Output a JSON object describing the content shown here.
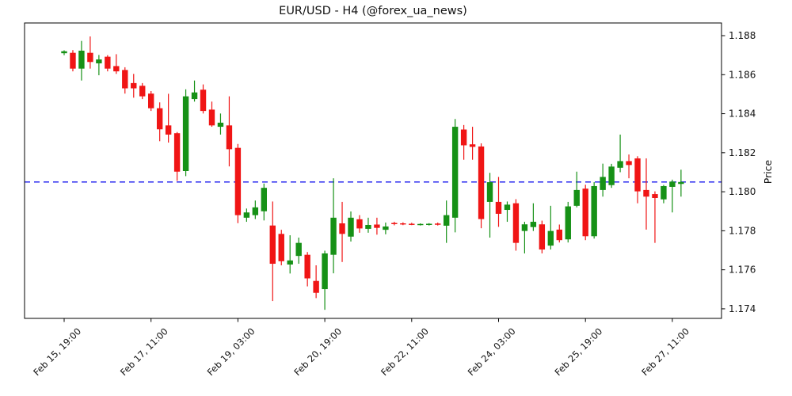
{
  "chart_data": {
    "type": "candlestick",
    "title": "EUR/USD - H4 (@forex_ua_news)",
    "ylabel": "Price",
    "ylabel_side": "right",
    "grid": false,
    "legend": null,
    "ylim": [
      1.17351,
      1.18865
    ],
    "xlim_index": [
      -4.56,
      75.66
    ],
    "y_ticks": [
      1.174,
      1.176,
      1.178,
      1.18,
      1.182,
      1.184,
      1.186,
      1.188
    ],
    "y_tick_format": "3dp",
    "x_ticks": [
      {
        "index": 0,
        "label": "Feb 15, 19:00"
      },
      {
        "index": 10,
        "label": "Feb 17, 11:00"
      },
      {
        "index": 20,
        "label": "Feb 19, 03:00"
      },
      {
        "index": 30,
        "label": "Feb 20, 19:00"
      },
      {
        "index": 40,
        "label": "Feb 22, 11:00"
      },
      {
        "index": 50,
        "label": "Feb 24, 03:00"
      },
      {
        "index": 60,
        "label": "Feb 25, 19:00"
      },
      {
        "index": 70,
        "label": "Feb 27, 11:00"
      }
    ],
    "hline": {
      "value": 1.1805,
      "color": "#1414ee",
      "style": "dashed"
    },
    "colors": {
      "up": "#169116",
      "down": "#f01515",
      "axis": "#000000",
      "text": "#111111"
    },
    "candles_ohlc": [
      [
        1.1871,
        1.18725,
        1.187,
        1.1872
      ],
      [
        1.18712,
        1.18726,
        1.18617,
        1.18631
      ],
      [
        1.18631,
        1.18773,
        1.1857,
        1.18723
      ],
      [
        1.18712,
        1.18796,
        1.18631,
        1.18665
      ],
      [
        1.18658,
        1.18701,
        1.18597,
        1.18678
      ],
      [
        1.18692,
        1.187,
        1.18617,
        1.18631
      ],
      [
        1.18644,
        1.18705,
        1.18604,
        1.18617
      ],
      [
        1.18624,
        1.18638,
        1.18503,
        1.1853
      ],
      [
        1.18557,
        1.18604,
        1.18482,
        1.1853
      ],
      [
        1.18543,
        1.18557,
        1.18475,
        1.18489
      ],
      [
        1.18503,
        1.18516,
        1.18414,
        1.18428
      ],
      [
        1.18428,
        1.18458,
        1.18259,
        1.1832
      ],
      [
        1.1834,
        1.18502,
        1.18252,
        1.18293
      ],
      [
        1.183,
        1.18306,
        1.18056,
        1.18103
      ],
      [
        1.18106,
        1.18525,
        1.1808,
        1.18489
      ],
      [
        1.18475,
        1.1857,
        1.18462,
        1.18509
      ],
      [
        1.18523,
        1.1855,
        1.18401,
        1.18414
      ],
      [
        1.18421,
        1.18462,
        1.18333,
        1.1834
      ],
      [
        1.18333,
        1.18401,
        1.18293,
        1.18354
      ],
      [
        1.1834,
        1.18489,
        1.1813,
        1.18218
      ],
      [
        1.18225,
        1.18245,
        1.17839,
        1.1788
      ],
      [
        1.17867,
        1.17914,
        1.17846,
        1.17894
      ],
      [
        1.1788,
        1.17955,
        1.1786,
        1.1792
      ],
      [
        1.179,
        1.18042,
        1.17853,
        1.1802
      ],
      [
        1.17827,
        1.1795,
        1.1744,
        1.17631
      ],
      [
        1.17784,
        1.17805,
        1.17623,
        1.17644
      ],
      [
        1.17627,
        1.17777,
        1.17581,
        1.17648
      ],
      [
        1.17671,
        1.17765,
        1.17631,
        1.17738
      ],
      [
        1.17677,
        1.17691,
        1.17515,
        1.17556
      ],
      [
        1.17543,
        1.17623,
        1.17455,
        1.17482
      ],
      [
        1.17501,
        1.17698,
        1.17395,
        1.17684
      ],
      [
        1.17677,
        1.18069,
        1.17582,
        1.17867
      ],
      [
        1.17838,
        1.17948,
        1.1764,
        1.17784
      ],
      [
        1.1777,
        1.17899,
        1.17745,
        1.17867
      ],
      [
        1.17859,
        1.1788,
        1.1779,
        1.17812
      ],
      [
        1.1781,
        1.17867,
        1.1779,
        1.1783
      ],
      [
        1.17832,
        1.17867,
        1.1778,
        1.17815
      ],
      [
        1.17805,
        1.17842,
        1.17782,
        1.17822
      ],
      [
        1.1784,
        1.17846,
        1.17828,
        1.17834
      ],
      [
        1.17838,
        1.17843,
        1.17829,
        1.17833
      ],
      [
        1.17836,
        1.17841,
        1.17829,
        1.17832
      ],
      [
        1.17829,
        1.17838,
        1.17827,
        1.17835
      ],
      [
        1.1783,
        1.17839,
        1.17827,
        1.17836
      ],
      [
        1.17837,
        1.17842,
        1.17827,
        1.17831
      ],
      [
        1.17826,
        1.17955,
        1.17738,
        1.1788
      ],
      [
        1.17867,
        1.18373,
        1.17792,
        1.18333
      ],
      [
        1.18319,
        1.18342,
        1.18164,
        1.18238
      ],
      [
        1.18243,
        1.18333,
        1.18164,
        1.1823
      ],
      [
        1.18232,
        1.18248,
        1.17813,
        1.1786
      ],
      [
        1.17948,
        1.18097,
        1.17765,
        1.18049
      ],
      [
        1.17948,
        1.18076,
        1.1782,
        1.17887
      ],
      [
        1.17907,
        1.1795,
        1.17846,
        1.17934
      ],
      [
        1.17941,
        1.17962,
        1.17698,
        1.17738
      ],
      [
        1.17799,
        1.17846,
        1.17684,
        1.17833
      ],
      [
        1.17819,
        1.17941,
        1.17799,
        1.17846
      ],
      [
        1.17833,
        1.17852,
        1.17684,
        1.17704
      ],
      [
        1.17724,
        1.17928,
        1.17704,
        1.17799
      ],
      [
        1.17806,
        1.17832,
        1.1774,
        1.17752
      ],
      [
        1.17756,
        1.17948,
        1.1774,
        1.17925
      ],
      [
        1.17928,
        1.18103,
        1.1792,
        1.18009
      ],
      [
        1.18016,
        1.18036,
        1.17752,
        1.17772
      ],
      [
        1.17772,
        1.18049,
        1.1776,
        1.18029
      ],
      [
        1.18009,
        1.18144,
        1.17975,
        1.18076
      ],
      [
        1.18034,
        1.18143,
        1.1802,
        1.18129
      ],
      [
        1.18123,
        1.18293,
        1.181,
        1.18157
      ],
      [
        1.18157,
        1.18191,
        1.18069,
        1.18137
      ],
      [
        1.18171,
        1.18182,
        1.17941,
        1.18002
      ],
      [
        1.18009,
        1.18171,
        1.17806,
        1.17975
      ],
      [
        1.17988,
        1.18002,
        1.17738,
        1.17968
      ],
      [
        1.17961,
        1.18035,
        1.17941,
        1.18029
      ],
      [
        1.18025,
        1.18062,
        1.17894,
        1.18052
      ],
      [
        1.1804,
        1.18113,
        1.17975,
        1.1805
      ]
    ]
  }
}
